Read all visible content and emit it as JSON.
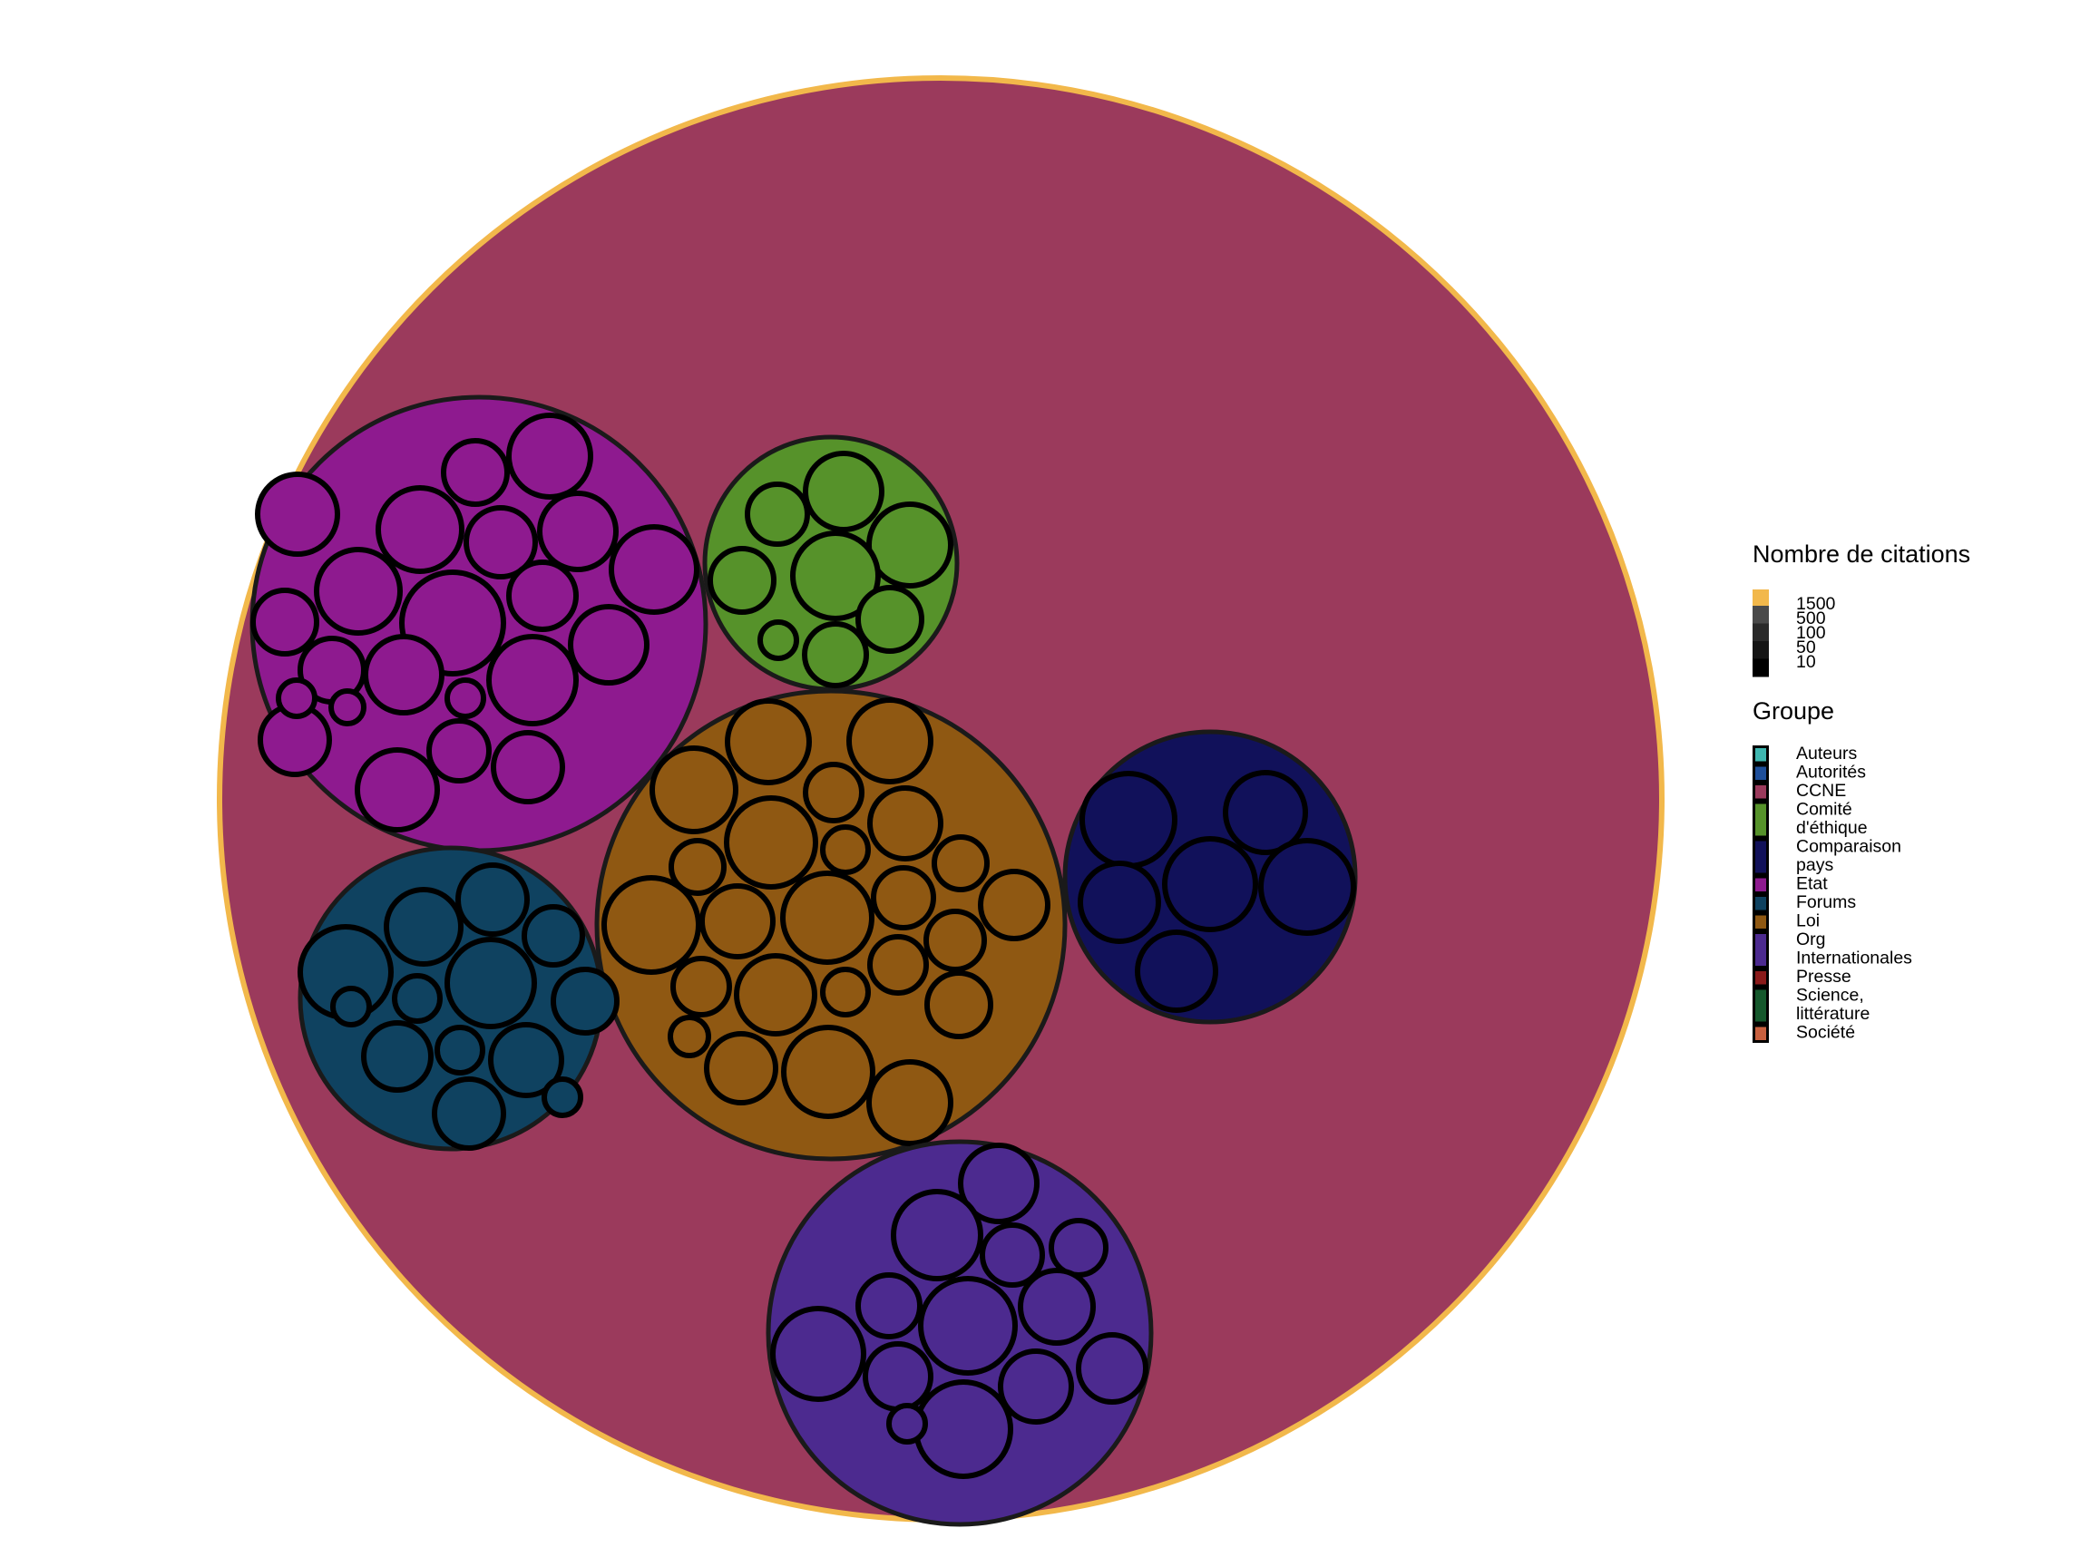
{
  "chart_data": {
    "type": "circle-packing",
    "root": {
      "label": "CCNE",
      "fill": "#9b3a5c",
      "stroke": "#f2b84b"
    },
    "groups": [
      {
        "name": "Etat",
        "fill": "#8e1a8f",
        "child_count": 22
      },
      {
        "name": "Comité d'éthique",
        "fill": "#56922a",
        "child_count": 8
      },
      {
        "name": "Loi",
        "fill": "#8f5812",
        "child_count": 24
      },
      {
        "name": "Comparaison pays",
        "fill": "#11115a",
        "child_count": 6
      },
      {
        "name": "Forums",
        "fill": "#0f4260",
        "child_count": 13
      },
      {
        "name": "Org Internationales",
        "fill": "#4c2a8f",
        "child_count": 14
      }
    ],
    "legend": {
      "size_title": "Nombre de citations",
      "size_labels": [
        "1500",
        "500",
        "100",
        "50",
        "10"
      ],
      "size_colors": [
        "#f2b84b",
        "#4a4a4a",
        "#2a2a2a",
        "#151515",
        "#000000"
      ],
      "group_title": "Groupe",
      "group_items": [
        {
          "label": "Auteurs",
          "color": "#3fb7b0"
        },
        {
          "label": "Autorités",
          "color": "#1f4f9a"
        },
        {
          "label": "CCNE",
          "color": "#9b3a5c"
        },
        {
          "label": "Comité d'éthique",
          "color": "#56922a"
        },
        {
          "label": "Comparaison pays",
          "color": "#11115a"
        },
        {
          "label": "Etat",
          "color": "#8e1a8f"
        },
        {
          "label": "Forums",
          "color": "#0f4260"
        },
        {
          "label": "Loi",
          "color": "#8f5812"
        },
        {
          "label": "Org Internationales",
          "color": "#4c2a8f"
        },
        {
          "label": "Presse",
          "color": "#8a1a1a"
        },
        {
          "label": "Science, littérature",
          "color": "#15582c"
        },
        {
          "label": "Société",
          "color": "#c8603f"
        }
      ]
    }
  }
}
